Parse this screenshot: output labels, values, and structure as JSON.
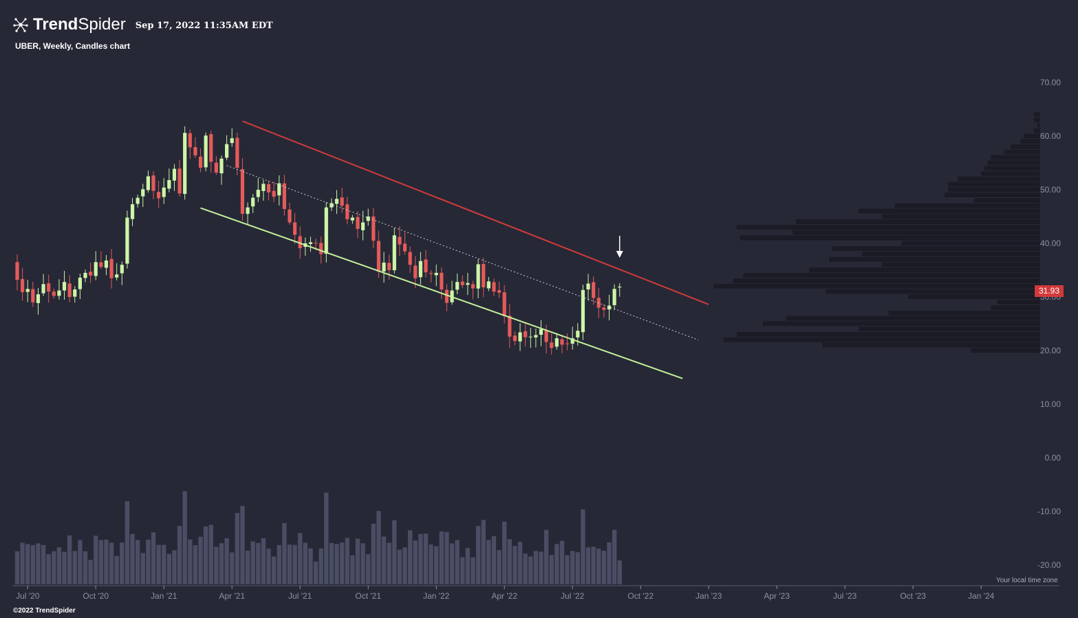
{
  "header": {
    "brand_bold": "Trend",
    "brand_light": "Spider",
    "timestamp": "Sep 17, 2022 11:35AM EDT"
  },
  "chart_title": "UBER, Weekly, Candles chart",
  "footer": {
    "copyright": "©2022 TrendSpider",
    "timezone_note": "Your local time zone"
  },
  "last_price_label": "31.93",
  "colors": {
    "background": "#262836",
    "up_candle": "#cdf5a7",
    "down_candle": "#e55a5a",
    "upper_trendline": "#d23a3a",
    "lower_trendline": "#c5f29b",
    "volume": "#4a4d63",
    "volume_profile": "#1a1b25",
    "axis_text": "#8d91a0",
    "arrow": "#ffffff"
  },
  "icons": {
    "logo": "trendspider-logo-icon",
    "marker": "down-arrow-icon"
  },
  "chart_data": {
    "type": "candlestick",
    "interval": "weekly",
    "ylim": [
      -22,
      73
    ],
    "y_ticks": [
      70,
      60,
      50,
      40,
      30,
      20,
      10,
      0,
      -10,
      -20
    ],
    "y_tick_labels": [
      "70.00",
      "60.00",
      "50.00",
      "40.00",
      "30.00",
      "20.00",
      "10.00",
      "0.00",
      "-10.00",
      "-20.00"
    ],
    "x_ticks": [
      "Jul '20",
      "Oct '20",
      "Jan '21",
      "Apr '21",
      "Jul '21",
      "Oct '21",
      "Jan '22",
      "Apr '22",
      "Jul '22",
      "Oct '22",
      "Jan '23",
      "Apr '23",
      "Jul '23",
      "Oct '23",
      "Jan '24"
    ],
    "x_tick_weeks": [
      2,
      15,
      28,
      41,
      54,
      67,
      80,
      93,
      106,
      119,
      132,
      145,
      158,
      171,
      184
    ],
    "first_candle": "2020-06-22",
    "last_close": 31.93,
    "closes": [
      33.2,
      30.9,
      31.5,
      29.0,
      30.5,
      32.4,
      31.0,
      30.2,
      31.2,
      32.8,
      30.0,
      31.4,
      33.6,
      34.5,
      34.0,
      36.5,
      35.6,
      36.8,
      33.5,
      34.2,
      36.0,
      44.8,
      47.3,
      48.5,
      50.1,
      52.5,
      49.8,
      48.4,
      50.4,
      51.8,
      53.9,
      49.3,
      60.6,
      57.9,
      56.4,
      54.1,
      60.1,
      55.2,
      53.2,
      55.8,
      58.5,
      59.6,
      54.1,
      45.5,
      46.7,
      48.5,
      50.0,
      51.1,
      49.5,
      48.7,
      51.2,
      46.4,
      43.9,
      41.6,
      39.1,
      40.0,
      40.2,
      40.0,
      38.0,
      46.7,
      47.5,
      48.3,
      47.0,
      44.5,
      44.8,
      42.7,
      43.9,
      45.0,
      40.5,
      34.7,
      36.4,
      35.0,
      41.5,
      39.8,
      38.5,
      36.0,
      33.5,
      36.7,
      34.6,
      34.3,
      34.5,
      31.4,
      28.9,
      31.2,
      32.8,
      32.2,
      32.6,
      31.6,
      36.1,
      31.8,
      32.9,
      31.0,
      30.8,
      26.4,
      22.6,
      21.8,
      23.4,
      22.5,
      22.6,
      22.9,
      24.0,
      21.6,
      20.5,
      22.3,
      21.1,
      21.2,
      22.3,
      23.7,
      31.3,
      32.5,
      29.8,
      28.0,
      27.6,
      28.4,
      31.5,
      31.93
    ],
    "upper_trendline": {
      "start": {
        "week": 43,
        "price": 62.8
      },
      "end": {
        "week": 132,
        "price": 28.6
      }
    },
    "lower_trendline": {
      "start": {
        "week": 35,
        "price": 46.6
      },
      "end": {
        "week": 127,
        "price": 14.8
      }
    },
    "midline": {
      "start": {
        "week": 40,
        "price": 54.5
      },
      "end": {
        "week": 130,
        "price": 22.0
      }
    },
    "volume_profile": {
      "price_step": 1,
      "price_start": 19.5,
      "relative_volumes": [
        0.21,
        0.66,
        0.96,
        0.92,
        0.55,
        0.84,
        0.77,
        0.46,
        0.15,
        0.13,
        0.4,
        0.65,
        0.99,
        0.93,
        0.9,
        0.7,
        0.48,
        0.64,
        0.54,
        0.63,
        0.42,
        0.91,
        0.75,
        0.92,
        0.74,
        0.48,
        0.55,
        0.44,
        0.2,
        0.29,
        0.28,
        0.28,
        0.25,
        0.18,
        0.17,
        0.16,
        0.15,
        0.11,
        0.09,
        0.06,
        0.05,
        0.02,
        0.01,
        0.02,
        0.02
      ]
    }
  }
}
